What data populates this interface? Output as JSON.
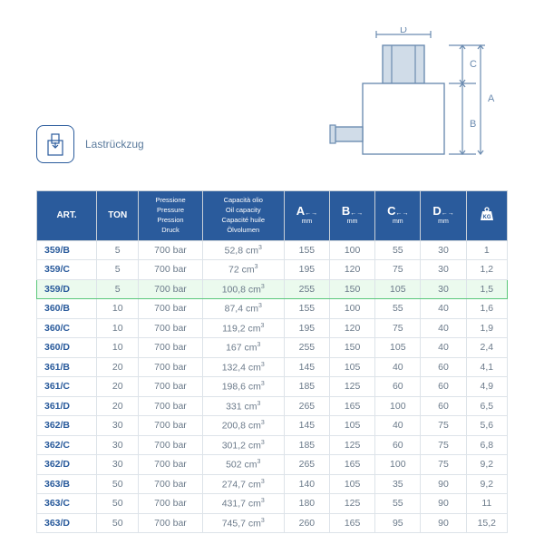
{
  "header": {
    "label_text": "Lastrückzug"
  },
  "diagram": {
    "labels": {
      "D": "D",
      "C": "C",
      "A": "A",
      "B": "B"
    },
    "colors": {
      "line": "#6b8bb0",
      "fill": "#d0dce8",
      "text": "#6b8bb0"
    }
  },
  "table": {
    "header_bg": "#2a5b9c",
    "header_fg": "#ffffff",
    "art_fg": "#2a5b9c",
    "cell_fg": "#6b7a8a",
    "highlight_border": "#5ac77a",
    "columns": [
      {
        "key": "art",
        "label": "ART."
      },
      {
        "key": "ton",
        "label": "TON"
      },
      {
        "key": "pressure",
        "lines": [
          "Pressione",
          "Pressure",
          "Pression",
          "Druck"
        ]
      },
      {
        "key": "oil",
        "lines": [
          "Capacità olio",
          "Oil capacity",
          "Capacité huile",
          "Ölvolumen"
        ]
      },
      {
        "key": "A",
        "label": "A",
        "unit": "mm"
      },
      {
        "key": "B",
        "label": "B",
        "unit": "mm"
      },
      {
        "key": "C",
        "label": "C",
        "unit": "mm"
      },
      {
        "key": "D",
        "label": "D",
        "unit": "mm"
      },
      {
        "key": "kg",
        "label": "KG"
      }
    ],
    "highlight_index": 2,
    "rows": [
      {
        "art": "359/B",
        "ton": "5",
        "pressure": "700 bar",
        "oil": "52,8 cm³",
        "A": "155",
        "B": "100",
        "C": "55",
        "D": "30",
        "kg": "1"
      },
      {
        "art": "359/C",
        "ton": "5",
        "pressure": "700 bar",
        "oil": "72 cm³",
        "A": "195",
        "B": "120",
        "C": "75",
        "D": "30",
        "kg": "1,2"
      },
      {
        "art": "359/D",
        "ton": "5",
        "pressure": "700 bar",
        "oil": "100,8 cm³",
        "A": "255",
        "B": "150",
        "C": "105",
        "D": "30",
        "kg": "1,5"
      },
      {
        "art": "360/B",
        "ton": "10",
        "pressure": "700 bar",
        "oil": "87,4 cm³",
        "A": "155",
        "B": "100",
        "C": "55",
        "D": "40",
        "kg": "1,6"
      },
      {
        "art": "360/C",
        "ton": "10",
        "pressure": "700 bar",
        "oil": "119,2 cm³",
        "A": "195",
        "B": "120",
        "C": "75",
        "D": "40",
        "kg": "1,9"
      },
      {
        "art": "360/D",
        "ton": "10",
        "pressure": "700 bar",
        "oil": "167 cm³",
        "A": "255",
        "B": "150",
        "C": "105",
        "D": "40",
        "kg": "2,4"
      },
      {
        "art": "361/B",
        "ton": "20",
        "pressure": "700 bar",
        "oil": "132,4 cm³",
        "A": "145",
        "B": "105",
        "C": "40",
        "D": "60",
        "kg": "4,1"
      },
      {
        "art": "361/C",
        "ton": "20",
        "pressure": "700 bar",
        "oil": "198,6 cm³",
        "A": "185",
        "B": "125",
        "C": "60",
        "D": "60",
        "kg": "4,9"
      },
      {
        "art": "361/D",
        "ton": "20",
        "pressure": "700 bar",
        "oil": "331 cm³",
        "A": "265",
        "B": "165",
        "C": "100",
        "D": "60",
        "kg": "6,5"
      },
      {
        "art": "362/B",
        "ton": "30",
        "pressure": "700 bar",
        "oil": "200,8 cm³",
        "A": "145",
        "B": "105",
        "C": "40",
        "D": "75",
        "kg": "5,6"
      },
      {
        "art": "362/C",
        "ton": "30",
        "pressure": "700 bar",
        "oil": "301,2 cm³",
        "A": "185",
        "B": "125",
        "C": "60",
        "D": "75",
        "kg": "6,8"
      },
      {
        "art": "362/D",
        "ton": "30",
        "pressure": "700 bar",
        "oil": "502 cm³",
        "A": "265",
        "B": "165",
        "C": "100",
        "D": "75",
        "kg": "9,2"
      },
      {
        "art": "363/B",
        "ton": "50",
        "pressure": "700 bar",
        "oil": "274,7 cm³",
        "A": "140",
        "B": "105",
        "C": "35",
        "D": "90",
        "kg": "9,2"
      },
      {
        "art": "363/C",
        "ton": "50",
        "pressure": "700 bar",
        "oil": "431,7 cm³",
        "A": "180",
        "B": "125",
        "C": "55",
        "D": "90",
        "kg": "11"
      },
      {
        "art": "363/D",
        "ton": "50",
        "pressure": "700 bar",
        "oil": "745,7 cm³",
        "A": "260",
        "B": "165",
        "C": "95",
        "D": "90",
        "kg": "15,2"
      }
    ]
  }
}
